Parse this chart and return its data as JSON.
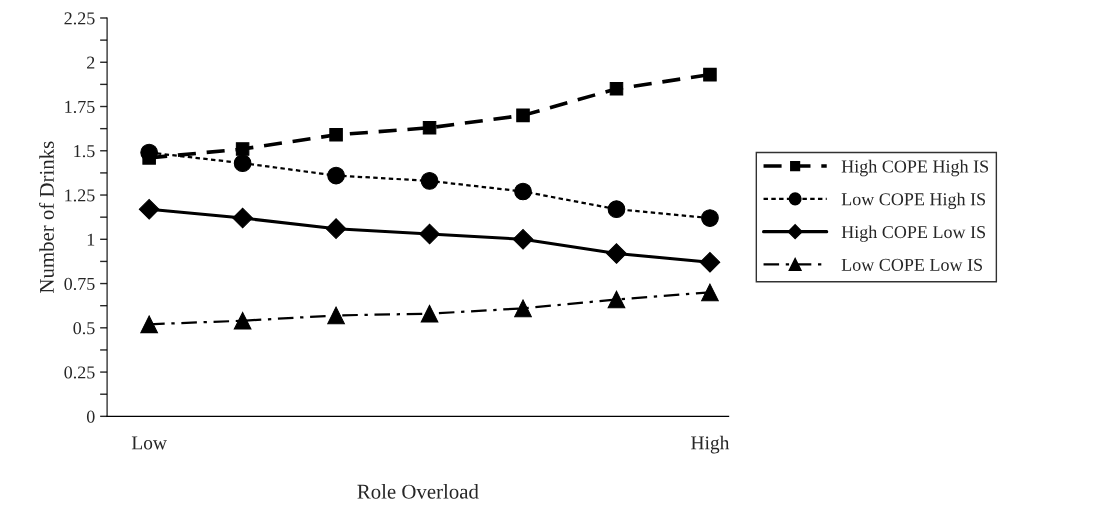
{
  "chart_data": {
    "type": "line",
    "xlabel": "Role Overload",
    "ylabel": "Number of Drinks",
    "categories": [
      "Low",
      null,
      null,
      null,
      null,
      null,
      "High"
    ],
    "ylim": [
      0,
      2.25
    ],
    "yticks": [
      0,
      {
        "value": 0.125,
        "label": null
      },
      0.25,
      {
        "value": 0.375,
        "label": null
      },
      0.5,
      {
        "value": 0.625,
        "label": null
      },
      0.75,
      {
        "value": 0.875,
        "label": null
      },
      1,
      {
        "value": 1.125,
        "label": null
      },
      1.25,
      {
        "value": 1.375,
        "label": null
      },
      1.5,
      {
        "value": 1.625,
        "label": null
      },
      1.75,
      {
        "value": 1.875,
        "label": null
      },
      2,
      {
        "value": 2.125,
        "label": null
      },
      2.25
    ],
    "grid": false,
    "legend": "right",
    "series": [
      {
        "name": "High COPE High IS",
        "color": "#000000",
        "marker": "square",
        "line_style": "dashed",
        "values": [
          1.46,
          1.51,
          1.59,
          1.63,
          1.7,
          1.85,
          1.93
        ]
      },
      {
        "name": "Low COPE High IS",
        "color": "#000000",
        "marker": "circle",
        "line_style": "dotted",
        "values": [
          1.49,
          1.43,
          1.36,
          1.33,
          1.27,
          1.17,
          1.12
        ]
      },
      {
        "name": "High COPE Low IS",
        "color": "#000000",
        "marker": "diamond",
        "line_style": "solid",
        "values": [
          1.17,
          1.12,
          1.06,
          1.03,
          1.0,
          0.92,
          0.87
        ]
      },
      {
        "name": "Low COPE Low IS",
        "color": "#000000",
        "marker": "triangle",
        "line_style": "dashdot",
        "values": [
          0.52,
          0.54,
          0.57,
          0.58,
          0.61,
          0.66,
          0.7
        ]
      }
    ]
  }
}
